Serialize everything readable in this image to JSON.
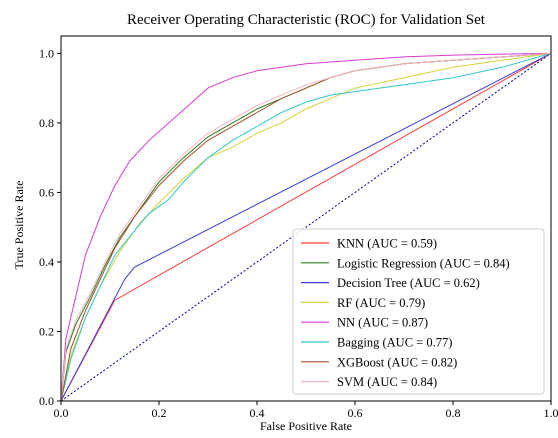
{
  "chart_data": {
    "type": "line",
    "title": "Receiver Operating Characteristic (ROC) for Validation Set",
    "xlabel": "False Positive Rate",
    "ylabel": "True Positive Rate",
    "xlim": [
      0.0,
      1.0
    ],
    "ylim": [
      0.0,
      1.05
    ],
    "xticks": [
      "0.0",
      "0.2",
      "0.4",
      "0.6",
      "0.8",
      "1.0"
    ],
    "yticks": [
      "0.0",
      "0.2",
      "0.4",
      "0.6",
      "0.8",
      "1.0"
    ],
    "grid": false,
    "legend_position": "lower right",
    "diagonal": {
      "x": [
        0,
        1
      ],
      "y": [
        0,
        1
      ],
      "color": "#00008b",
      "style": "dotted"
    },
    "series": [
      {
        "name": "KNN",
        "label": "KNN (AUC = 0.59)",
        "color": "#ff3b3b",
        "x": [
          0,
          0.11,
          0.11,
          1.0
        ],
        "y": [
          0,
          0.29,
          0.29,
          1.0
        ]
      },
      {
        "name": "Logistic Regression",
        "label": "Logistic Regression (AUC = 0.84)",
        "color": "#2e7d1f",
        "x": [
          0,
          0.01,
          0.03,
          0.06,
          0.09,
          0.12,
          0.16,
          0.2,
          0.25,
          0.3,
          0.35,
          0.4,
          0.45,
          0.5,
          0.55,
          0.6,
          0.65,
          0.7,
          0.8,
          0.9,
          1.0
        ],
        "y": [
          0,
          0.14,
          0.22,
          0.3,
          0.39,
          0.47,
          0.55,
          0.63,
          0.7,
          0.76,
          0.8,
          0.84,
          0.87,
          0.9,
          0.93,
          0.95,
          0.96,
          0.97,
          0.98,
          0.99,
          1.0
        ]
      },
      {
        "name": "Decision Tree",
        "label": "Decision Tree (AUC = 0.62)",
        "color": "#3b3bdc",
        "x": [
          0,
          0.13,
          0.15,
          1.0
        ],
        "y": [
          0,
          0.35,
          0.385,
          1.0
        ]
      },
      {
        "name": "RF",
        "label": "RF (AUC = 0.79)",
        "color": "#d4d43a",
        "x": [
          0,
          0.02,
          0.05,
          0.08,
          0.12,
          0.16,
          0.2,
          0.25,
          0.3,
          0.35,
          0.4,
          0.45,
          0.5,
          0.55,
          0.6,
          0.7,
          0.8,
          0.9,
          1.0
        ],
        "y": [
          0,
          0.13,
          0.24,
          0.33,
          0.43,
          0.51,
          0.57,
          0.64,
          0.7,
          0.73,
          0.77,
          0.8,
          0.84,
          0.87,
          0.9,
          0.93,
          0.96,
          0.98,
          1.0
        ]
      },
      {
        "name": "NN",
        "label": "NN (AUC = 0.87)",
        "color": "#d63bd6",
        "x": [
          0,
          0.01,
          0.03,
          0.05,
          0.08,
          0.11,
          0.14,
          0.18,
          0.22,
          0.26,
          0.3,
          0.35,
          0.4,
          0.45,
          0.5,
          0.6,
          0.7,
          0.8,
          0.9,
          1.0
        ],
        "y": [
          0,
          0.18,
          0.3,
          0.42,
          0.53,
          0.62,
          0.69,
          0.75,
          0.8,
          0.85,
          0.9,
          0.93,
          0.95,
          0.96,
          0.97,
          0.98,
          0.99,
          0.995,
          0.998,
          1.0
        ]
      },
      {
        "name": "Bagging",
        "label": "Bagging (AUC = 0.77)",
        "color": "#33c8c8",
        "x": [
          0,
          0.02,
          0.05,
          0.08,
          0.11,
          0.15,
          0.18,
          0.22,
          0.25,
          0.3,
          0.35,
          0.4,
          0.45,
          0.5,
          0.55,
          0.6,
          0.7,
          0.8,
          0.9,
          1.0
        ],
        "y": [
          0,
          0.12,
          0.24,
          0.33,
          0.42,
          0.49,
          0.54,
          0.58,
          0.63,
          0.7,
          0.75,
          0.79,
          0.83,
          0.86,
          0.88,
          0.89,
          0.91,
          0.93,
          0.96,
          1.0
        ]
      },
      {
        "name": "XGBoost",
        "label": "XGBoost  (AUC = 0.82)",
        "color": "#a0522d",
        "x": [
          0,
          0.02,
          0.05,
          0.08,
          0.11,
          0.15,
          0.2,
          0.25,
          0.3,
          0.35,
          0.4,
          0.45,
          0.5,
          0.55,
          0.6,
          0.7,
          0.8,
          0.9,
          1.0
        ],
        "y": [
          0,
          0.15,
          0.26,
          0.35,
          0.44,
          0.53,
          0.62,
          0.69,
          0.75,
          0.79,
          0.83,
          0.87,
          0.9,
          0.93,
          0.95,
          0.97,
          0.98,
          0.99,
          1.0
        ]
      },
      {
        "name": "SVM",
        "label": "SVM (AUC = 0.84)",
        "color": "#f4b6c2",
        "x": [
          0,
          0.01,
          0.03,
          0.06,
          0.09,
          0.12,
          0.16,
          0.2,
          0.25,
          0.3,
          0.35,
          0.4,
          0.45,
          0.5,
          0.6,
          0.7,
          0.8,
          0.9,
          1.0
        ],
        "y": [
          0,
          0.15,
          0.23,
          0.31,
          0.4,
          0.48,
          0.56,
          0.64,
          0.71,
          0.77,
          0.81,
          0.85,
          0.88,
          0.91,
          0.95,
          0.97,
          0.98,
          0.99,
          1.0
        ]
      }
    ]
  }
}
